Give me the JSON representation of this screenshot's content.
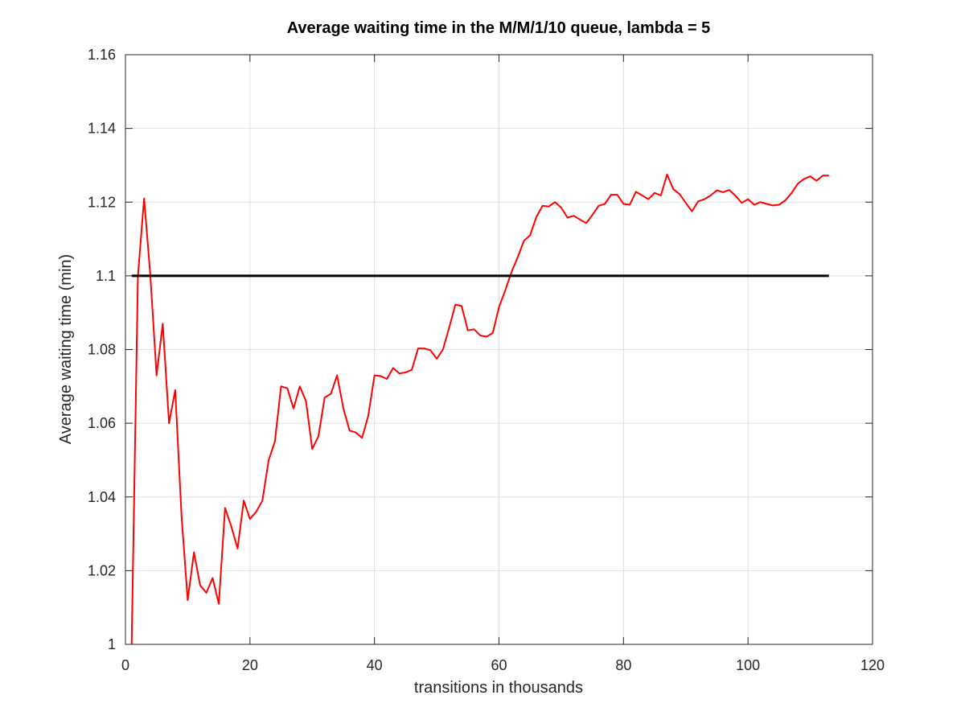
{
  "chart_data": {
    "type": "line",
    "title": "Average waiting time in the M/M/1/10 queue, lambda = 5",
    "xlabel": "transitions in thousands",
    "ylabel": "Average waiting time (min)",
    "xlim": [
      0,
      120
    ],
    "ylim": [
      1,
      1.16
    ],
    "xticks": [
      0,
      20,
      40,
      60,
      80,
      100,
      120
    ],
    "xtick_labels": [
      "0",
      "20",
      "40",
      "60",
      "80",
      "100",
      "120"
    ],
    "yticks": [
      1,
      1.02,
      1.04,
      1.06,
      1.08,
      1.1,
      1.12,
      1.14,
      1.16
    ],
    "ytick_labels": [
      "1",
      "1.02",
      "1.04",
      "1.06",
      "1.08",
      "1.1",
      "1.12",
      "1.14",
      "1.16"
    ],
    "grid": true,
    "series": [
      {
        "color": "#ff0000",
        "x": [
          1,
          2,
          3,
          4,
          5,
          6,
          7,
          8,
          9,
          10,
          11,
          12,
          13,
          14,
          15,
          16,
          17,
          18,
          19,
          20,
          21,
          22,
          23,
          24,
          25,
          26,
          27,
          28,
          29,
          30,
          31,
          32,
          33,
          34,
          35,
          36,
          37,
          38,
          39,
          40,
          41,
          42,
          43,
          44,
          45,
          46,
          47,
          48,
          49,
          50,
          51,
          52,
          53,
          54,
          55,
          56,
          57,
          58,
          59,
          60,
          61,
          62,
          63,
          64,
          65,
          66,
          67,
          68,
          69,
          70,
          71,
          72,
          73,
          74,
          75,
          76,
          77,
          78,
          79,
          80,
          81,
          82,
          83,
          84,
          85,
          86,
          87,
          88,
          89,
          90,
          91,
          92,
          93,
          94,
          95,
          96,
          97,
          98,
          99,
          100,
          101,
          102,
          103,
          104,
          105,
          106,
          107,
          108,
          109,
          110,
          111,
          112,
          113
        ],
        "y": [
          1.0,
          1.1,
          1.121,
          1.1,
          1.073,
          1.087,
          1.06,
          1.069,
          1.035,
          1.012,
          1.025,
          1.016,
          1.014,
          1.018,
          1.011,
          1.037,
          1.032,
          1.026,
          1.039,
          1.034,
          1.036,
          1.039,
          1.05,
          1.055,
          1.07,
          1.0695,
          1.064,
          1.07,
          1.066,
          1.053,
          1.0565,
          1.067,
          1.068,
          1.073,
          1.064,
          1.058,
          1.0575,
          1.056,
          1.062,
          1.073,
          1.0728,
          1.072,
          1.075,
          1.0735,
          1.0738,
          1.0745,
          1.0803,
          1.0803,
          1.0798,
          1.0775,
          1.08,
          1.086,
          1.0922,
          1.0918,
          1.0852,
          1.0855,
          1.0838,
          1.0835,
          1.0845,
          1.0915,
          1.096,
          1.101,
          1.105,
          1.1095,
          1.111,
          1.116,
          1.119,
          1.1188,
          1.12,
          1.1185,
          1.1158,
          1.1163,
          1.1153,
          1.1143,
          1.1165,
          1.119,
          1.1195,
          1.122,
          1.122,
          1.1195,
          1.1193,
          1.1228,
          1.1218,
          1.1208,
          1.1225,
          1.1218,
          1.1275,
          1.1235,
          1.1222,
          1.1198,
          1.1175,
          1.1202,
          1.1208,
          1.1218,
          1.1232,
          1.1227,
          1.1233,
          1.1217,
          1.1198,
          1.1208,
          1.1193,
          1.12,
          1.1195,
          1.1191,
          1.1193,
          1.1205,
          1.1225,
          1.125,
          1.1263,
          1.127,
          1.1258,
          1.1272,
          1.1272
        ]
      },
      {
        "color": "#000000",
        "x": [
          1,
          113
        ],
        "y": [
          1.1,
          1.1
        ]
      }
    ]
  }
}
